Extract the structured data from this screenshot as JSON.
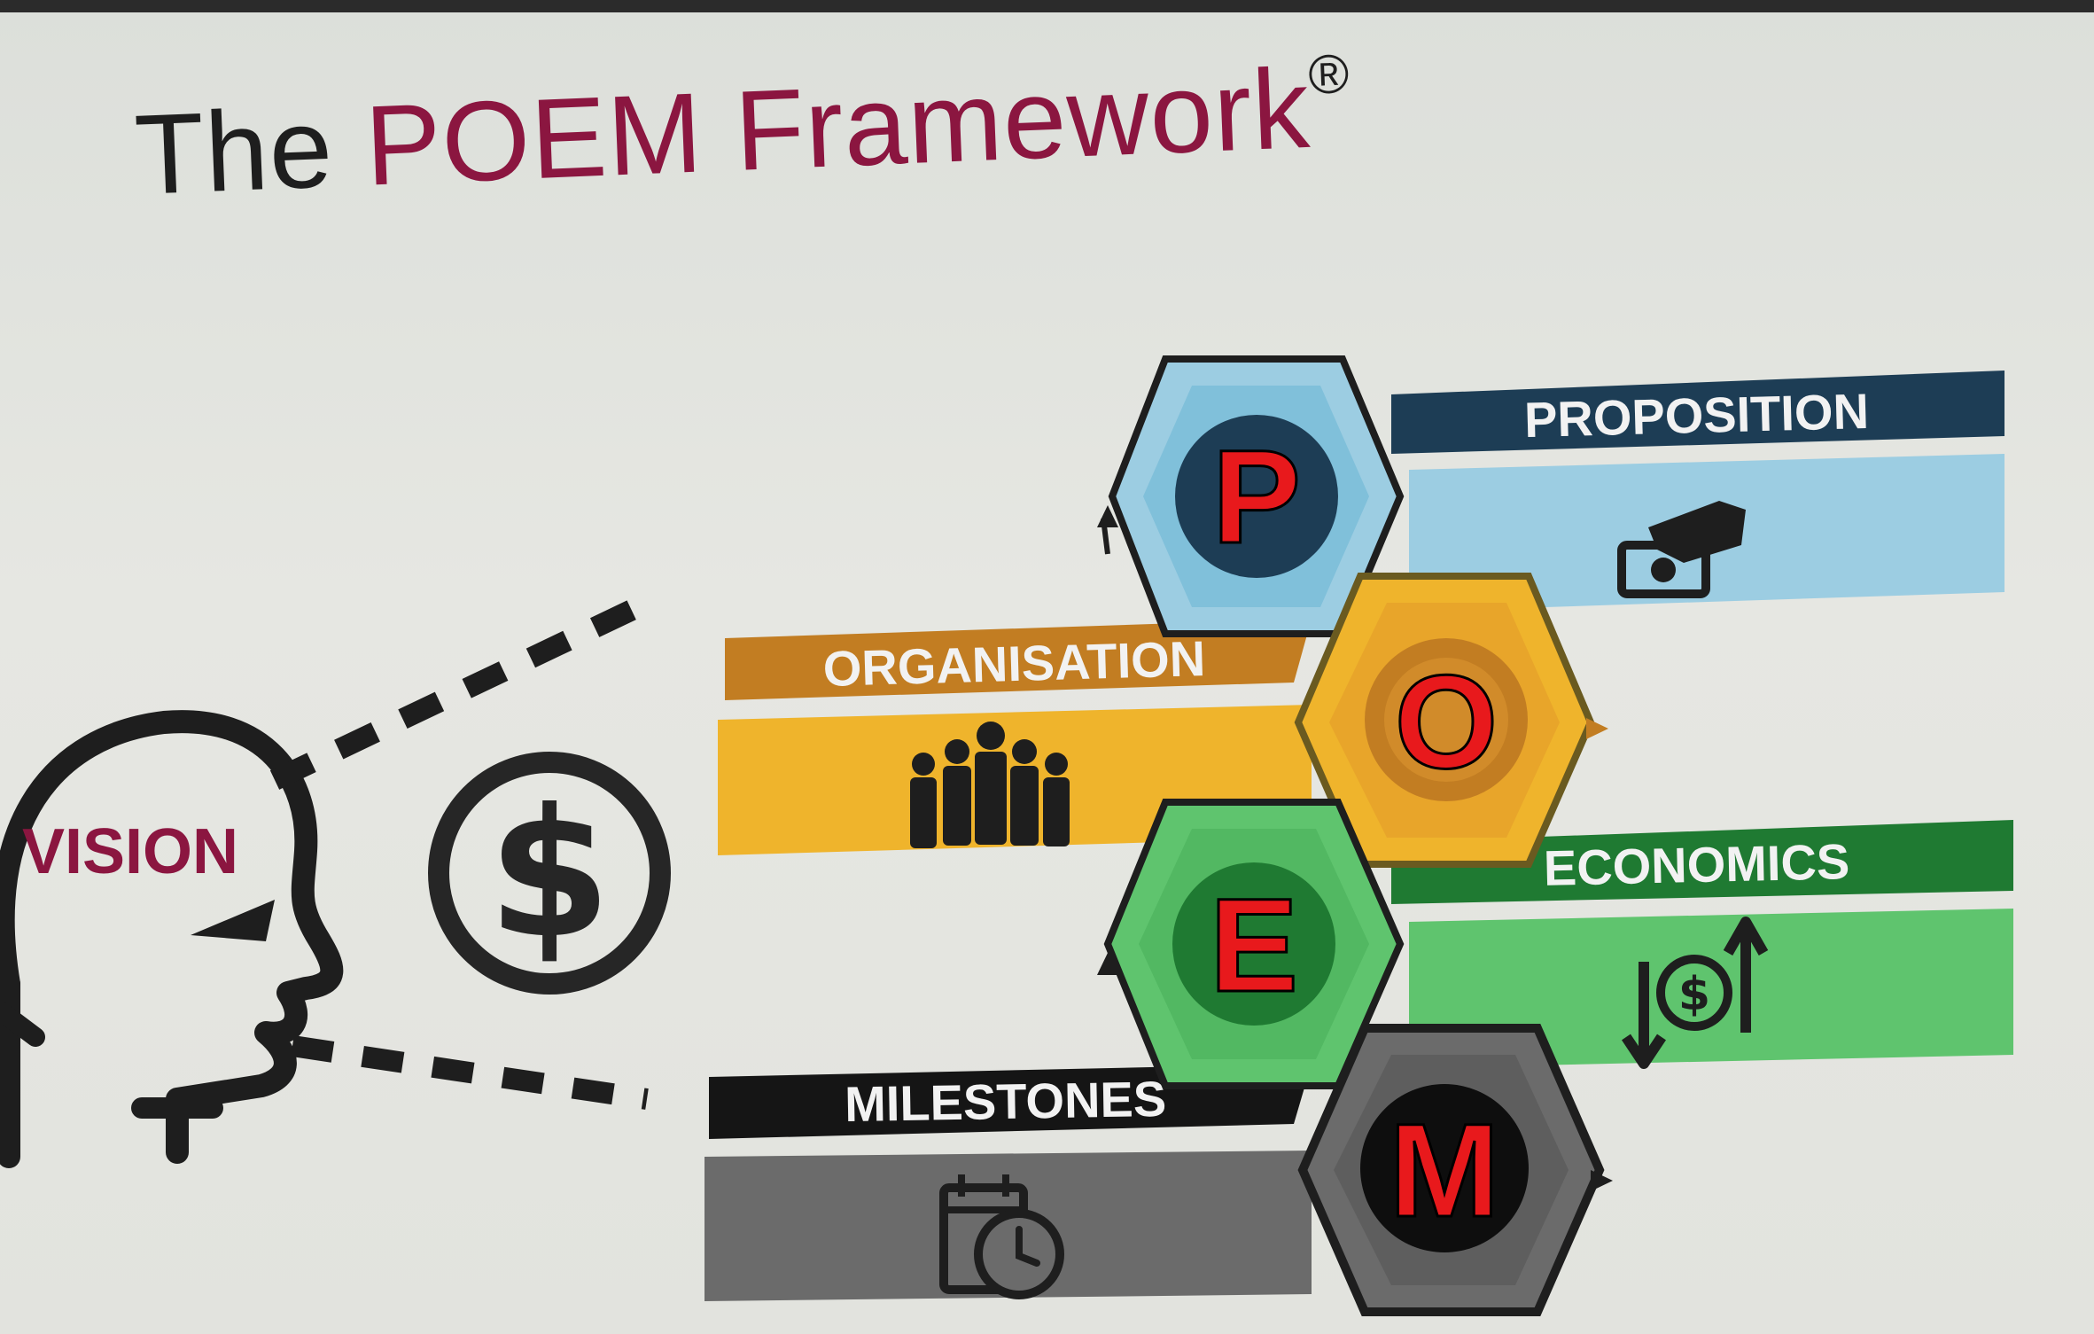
{
  "slide": {
    "title_prefix": "The ",
    "title_highlight": "POEM Framework",
    "title_mark": "®"
  },
  "vision": {
    "label": "VISION",
    "money_symbol": "$"
  },
  "framework": {
    "proposition": {
      "letter": "P",
      "label": "PROPOSITION",
      "icon": "hand-with-money-icon"
    },
    "organisation": {
      "letter": "O",
      "label": "ORGANISATION",
      "icon": "people-group-icon"
    },
    "economics": {
      "letter": "E",
      "label": "ECONOMICS",
      "icon": "dollar-exchange-icon",
      "icon_symbol": "$"
    },
    "milestones": {
      "letter": "M",
      "label": "MILESTONES",
      "icon": "calendar-clock-icon"
    }
  },
  "colors": {
    "title_accent": "#8b1640",
    "letter": "#e8191c",
    "proposition_dark": "#1d3d55",
    "proposition_light": "#9ccde2",
    "organisation_dark": "#c27d22",
    "organisation_light": "#efb42c",
    "economics_dark": "#1f7a32",
    "economics_light": "#5fc46e",
    "milestones_dark": "#151515",
    "milestones_light": "#6b6b6b"
  }
}
